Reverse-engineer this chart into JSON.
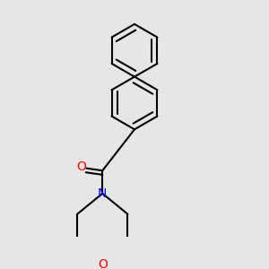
{
  "background_color": "#e6e6e6",
  "bond_color": "#000000",
  "atom_O_color": "#ff0000",
  "atom_N_color": "#0000ff",
  "bond_lw": 1.5,
  "dbo": 0.018,
  "figsize": [
    3.0,
    3.0
  ],
  "dpi": 100,
  "xlim": [
    0.15,
    0.85
  ],
  "ylim": [
    0.02,
    1.05
  ]
}
